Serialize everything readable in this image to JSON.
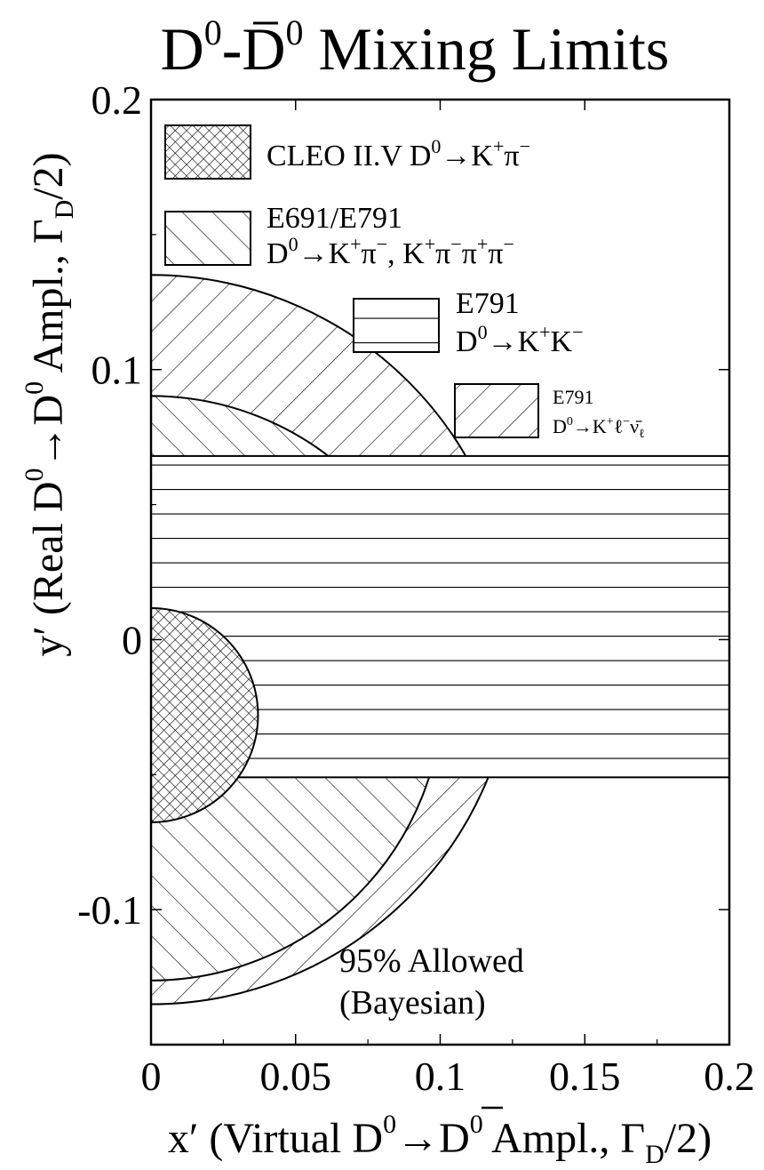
{
  "chart_data": {
    "type": "region",
    "title": "D⁰-D̄⁰ Mixing Limits",
    "xlabel": "x′ (Virtual D⁰→D̄⁰ Ampl., Γ_D/2)",
    "ylabel": "y′ (Real D⁰→D̄⁰ Ampl., Γ_D/2)",
    "xlim": [
      0,
      0.2
    ],
    "ylim": [
      -0.15,
      0.2
    ],
    "x_ticks": [
      0,
      0.05,
      0.1,
      0.15,
      0.2
    ],
    "x_tick_labels": [
      "0",
      "0.05",
      "0.1",
      "0.15",
      "0.2"
    ],
    "y_ticks": [
      -0.1,
      0,
      0.1,
      0.2
    ],
    "y_tick_labels": [
      "-0.1",
      "0",
      "0.1",
      "0.2"
    ],
    "legend_position": "top-right",
    "annotation": [
      "95% Allowed",
      "(Bayesian)"
    ],
    "series": [
      {
        "name": "CLEO II.V D⁰→K⁺π⁻",
        "shape": "half-disk",
        "center": [
          0,
          -0.028
        ],
        "radius": 0.037,
        "pattern": "cross-hatch"
      },
      {
        "name": "E691/E791 D⁰→K⁺π⁻, K⁺π⁻π⁺π⁻",
        "shape": "half-disk",
        "center": [
          0,
          -0.018
        ],
        "radius": 0.101,
        "pattern": "back-diagonal"
      },
      {
        "name": "E791 D⁰→K⁺K⁻",
        "shape": "band",
        "y_range": [
          -0.051,
          0.068
        ],
        "pattern": "horizontal"
      },
      {
        "name": "E791 D⁰→K⁺ℓ⁻ν̄_ℓ",
        "shape": "half-disk",
        "center": [
          0,
          0
        ],
        "radius": 0.126,
        "pattern": "forward-diagonal"
      }
    ]
  }
}
